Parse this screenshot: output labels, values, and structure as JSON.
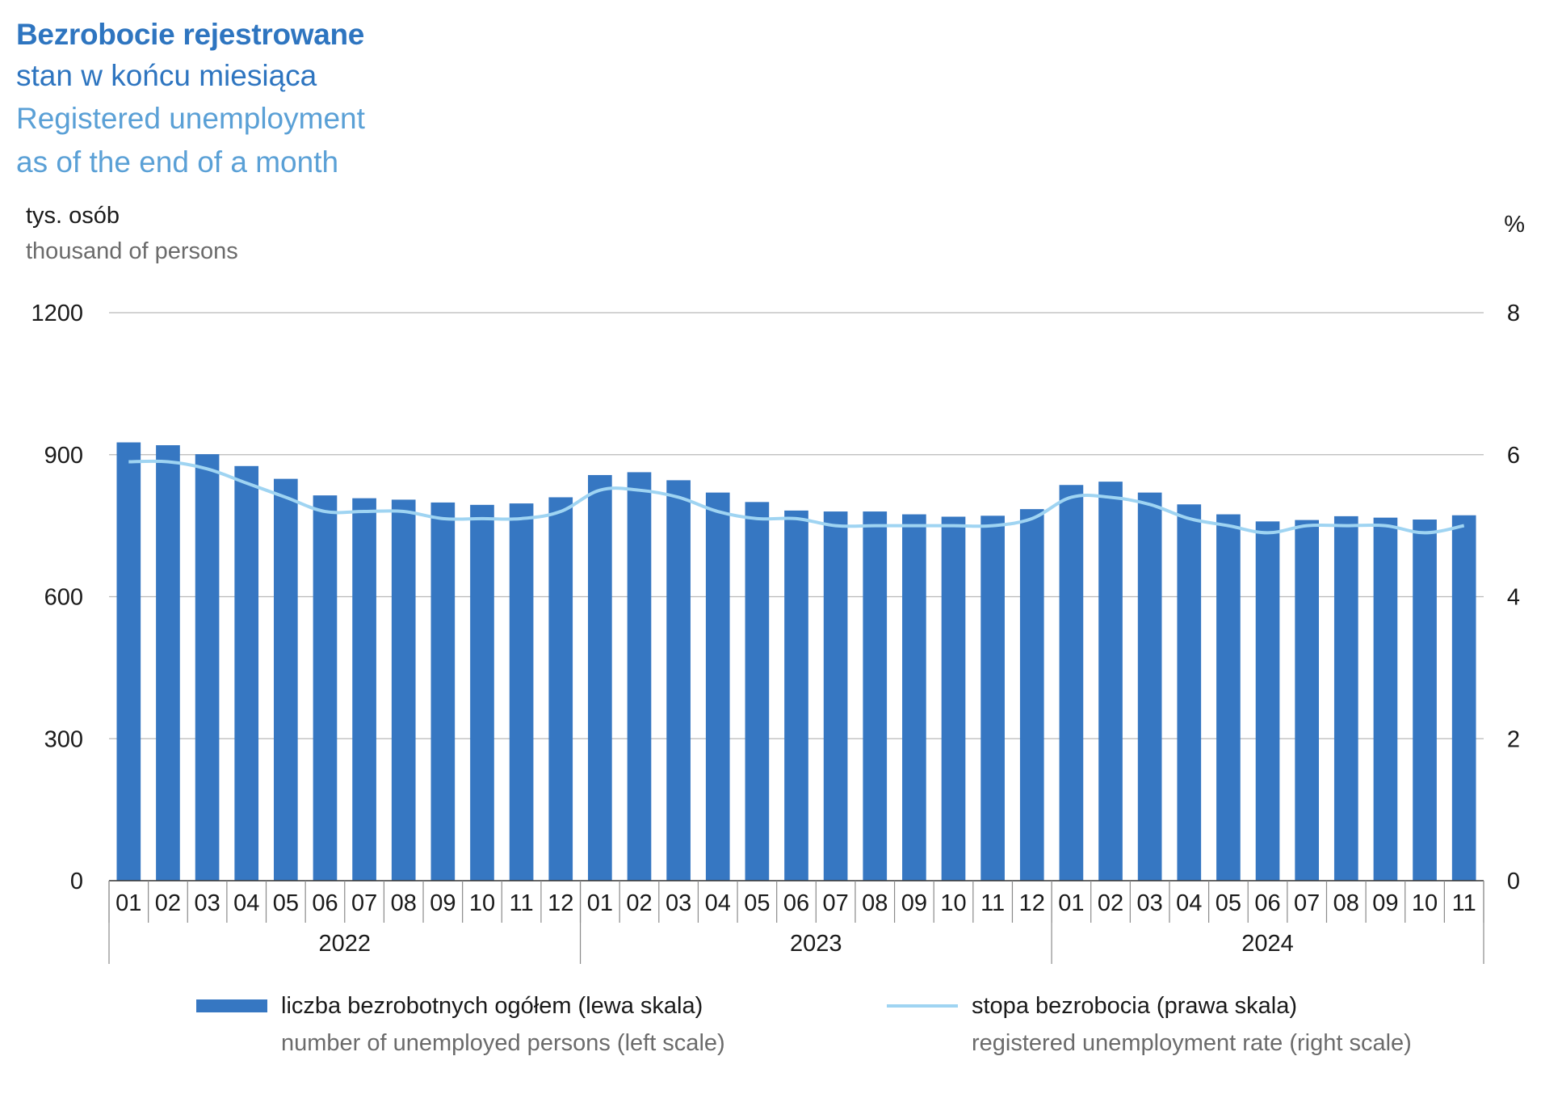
{
  "header": {
    "title_pl_bold": "Bezrobocie rejestrowane",
    "title_pl": "stan w końcu miesiąca",
    "title_en": "Registered unemployment",
    "title_en2": "as of the end of a month"
  },
  "axes": {
    "left_unit_pl": "tys. osób",
    "left_unit_en": "thousand of persons",
    "right_unit": "%"
  },
  "legend": {
    "bars_pl": "liczba bezrobotnych ogółem (lewa skala)",
    "bars_en": "number of unemployed persons (left scale)",
    "line_pl": "stopa bezrobocia (prawa skala)",
    "line_en": "registered unemployment rate (right scale)"
  },
  "colors": {
    "bars": "#3677c2",
    "line": "#9fd4f2",
    "title": "#2e75c0",
    "subtitle_en": "#5aa0d6",
    "grid": "#b9b9b9"
  },
  "chart_data": {
    "type": "bar",
    "categories": [
      "01",
      "02",
      "03",
      "04",
      "05",
      "06",
      "07",
      "08",
      "09",
      "10",
      "11",
      "12",
      "01",
      "02",
      "03",
      "04",
      "05",
      "06",
      "07",
      "08",
      "09",
      "10",
      "11",
      "12",
      "01",
      "02",
      "03",
      "04",
      "05",
      "06",
      "07",
      "08",
      "09",
      "10",
      "11"
    ],
    "years": [
      {
        "label": "2022",
        "count": 12
      },
      {
        "label": "2023",
        "count": 12
      },
      {
        "label": "2024",
        "count": 11
      }
    ],
    "series": [
      {
        "name": "liczba bezrobotnych ogółem (lewa skala)",
        "type": "bar",
        "axis": "left",
        "values": [
          926,
          920,
          901,
          876,
          849,
          814,
          808,
          805,
          799,
          794,
          797,
          810,
          857,
          863,
          846,
          820,
          800,
          782,
          780,
          780,
          774,
          769,
          771,
          785,
          836,
          843,
          820,
          795,
          774,
          759,
          762,
          770,
          767,
          763,
          772
        ]
      },
      {
        "name": "stopa bezrobocia (prawa skala)",
        "type": "line",
        "axis": "right",
        "values": [
          5.9,
          5.9,
          5.8,
          5.6,
          5.4,
          5.2,
          5.2,
          5.2,
          5.1,
          5.1,
          5.1,
          5.2,
          5.5,
          5.5,
          5.4,
          5.2,
          5.1,
          5.1,
          5.0,
          5.0,
          5.0,
          5.0,
          5.0,
          5.1,
          5.4,
          5.4,
          5.3,
          5.1,
          5.0,
          4.9,
          5.0,
          5.0,
          5.0,
          4.9,
          5.0
        ]
      }
    ],
    "ylim_left": [
      0,
      1200
    ],
    "yticks_left": [
      0,
      300,
      600,
      900,
      1200
    ],
    "ylim_right": [
      0,
      8
    ],
    "yticks_right": [
      0,
      2,
      4,
      6,
      8
    ],
    "grid": true,
    "legend_position": "bottom"
  }
}
